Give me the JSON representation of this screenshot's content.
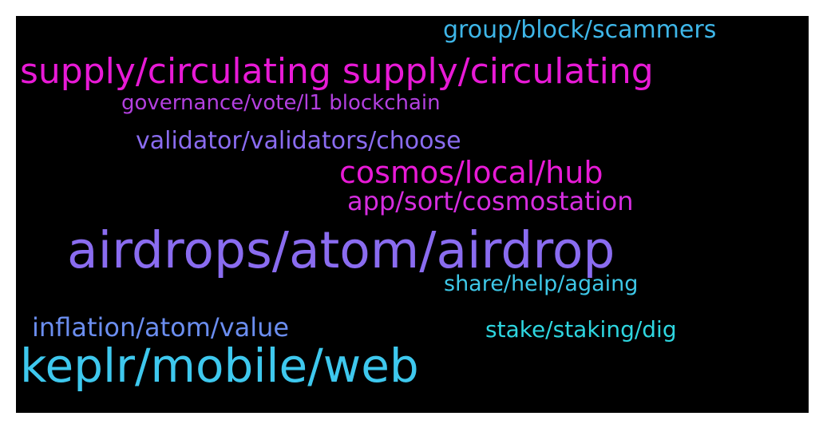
{
  "words": [
    {
      "text": "group/block/scammers",
      "color": "#3eb6e8"
    },
    {
      "text": "supply/circulating supply/circulating",
      "color": "#e81ad6"
    },
    {
      "text": "governance/vote/l1 blockchain",
      "color": "#b340e0"
    },
    {
      "text": "validator/validators/choose",
      "color": "#8a6cf0"
    },
    {
      "text": "cosmos/local/hub",
      "color": "#e81ad6"
    },
    {
      "text": "app/sort/cosmostation",
      "color": "#d62de0"
    },
    {
      "text": "airdrops/atom/airdrop",
      "color": "#8a6cf0"
    },
    {
      "text": "share/help/againg",
      "color": "#3ec8e8"
    },
    {
      "text": "inflation/atom/value",
      "color": "#6b8ef0"
    },
    {
      "text": "stake/staking/dig",
      "color": "#2ed6e0"
    },
    {
      "text": "keplr/mobile/web",
      "color": "#3ec8ee"
    }
  ]
}
